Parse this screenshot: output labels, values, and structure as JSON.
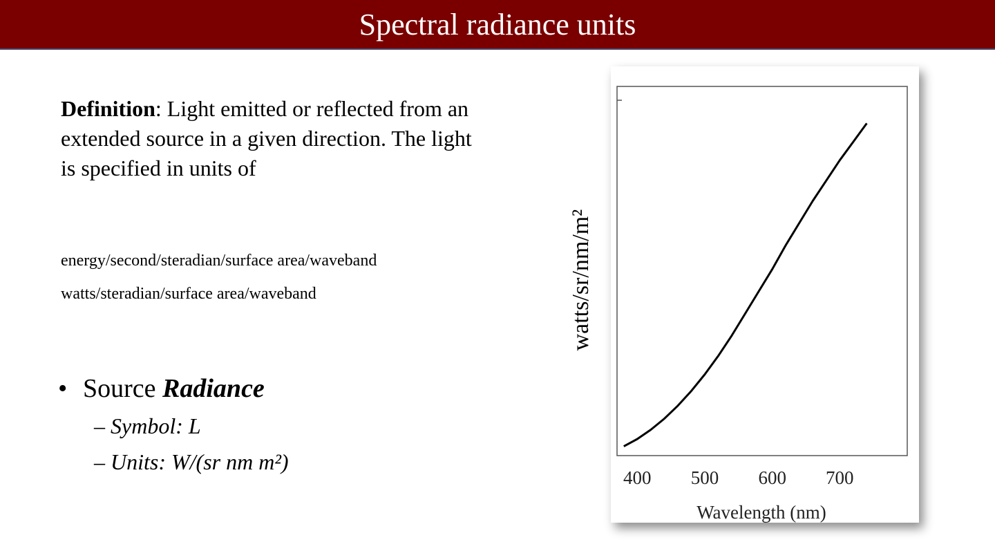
{
  "slide": {
    "title": "Spectral radiance units",
    "definition_term": "Definition",
    "definition_text": ": Light emitted or reflected from an extended source in a given direction. The light is specified in units of",
    "units_line_1": "energy/second/steradian/surface area/waveband",
    "units_line_2": "watts/steradian/surface area/waveband",
    "bullet_prefix": "Source ",
    "bullet_emph": "Radiance",
    "sub_symbol": "– Symbol: L",
    "sub_units": "– Units: W/(sr nm m²)"
  },
  "chart_data": {
    "type": "line",
    "ylabel": "watts/sr/nm/m²",
    "xlabel": "Wavelength (nm)",
    "xticks": [
      "400",
      "500",
      "600",
      "700"
    ],
    "xlim": [
      370,
      800
    ],
    "ylim": [
      0,
      1
    ],
    "series": [
      {
        "x": [
          380,
          400,
          420,
          440,
          460,
          480,
          500,
          520,
          540,
          560,
          580,
          600,
          620,
          640,
          660,
          680,
          700,
          720,
          740
        ],
        "y": [
          0.025,
          0.045,
          0.07,
          0.1,
          0.135,
          0.175,
          0.22,
          0.27,
          0.325,
          0.385,
          0.445,
          0.505,
          0.57,
          0.63,
          0.69,
          0.745,
          0.8,
          0.85,
          0.9
        ]
      }
    ]
  }
}
